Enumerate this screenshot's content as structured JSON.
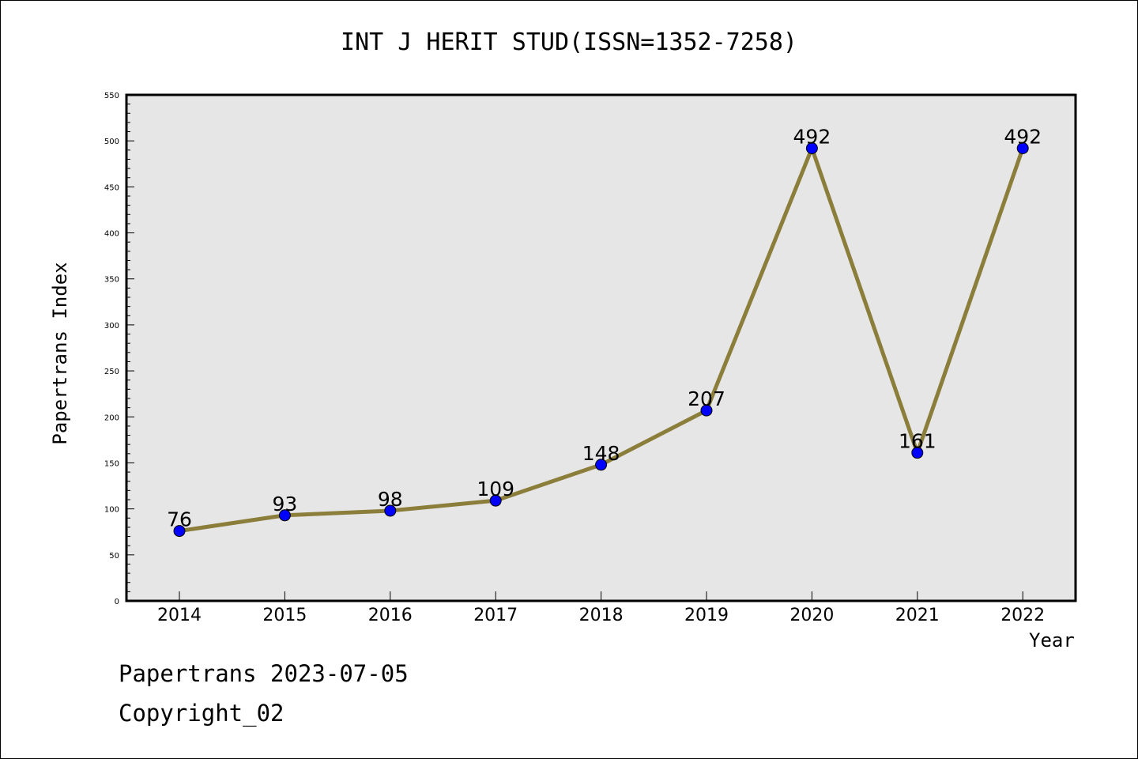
{
  "chart_data": {
    "type": "line",
    "title": "INT J HERIT STUD(ISSN=1352-7258)",
    "xlabel": "Year",
    "ylabel": "Papertrans Index",
    "x": [
      "2014",
      "2015",
      "2016",
      "2017",
      "2018",
      "2019",
      "2020",
      "2021",
      "2022"
    ],
    "series": [
      {
        "values": [
          76,
          93,
          98,
          109,
          148,
          207,
          492,
          161,
          492
        ]
      }
    ],
    "ylim": [
      0,
      550
    ],
    "yticks": [
      0,
      50,
      100,
      150,
      200,
      250,
      300,
      350,
      400,
      450,
      500,
      550
    ],
    "grid": false,
    "colors": {
      "line": "#8b7d3a",
      "marker": "#0000ff",
      "plot_background": "#e6e6e6"
    }
  },
  "footer": {
    "line1": "Papertrans 2023-07-05",
    "line2": "Copyright_02"
  }
}
